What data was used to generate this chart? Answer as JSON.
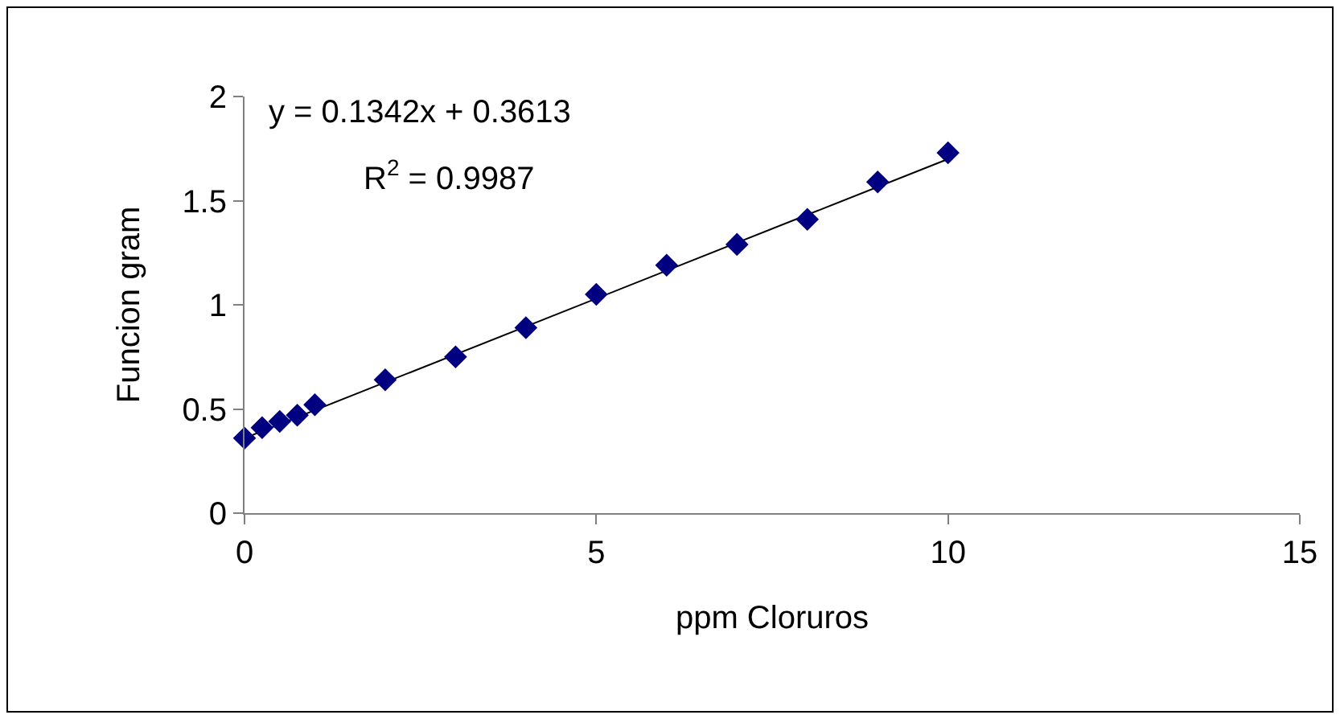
{
  "chart_data": {
    "type": "scatter",
    "xlabel": "ppm Cloruros",
    "ylabel": "Funcion gram",
    "marker": "diamond",
    "grid": false,
    "xlim": [
      0,
      15
    ],
    "xticks": [
      0,
      5,
      10,
      15
    ],
    "ylim": [
      0,
      2
    ],
    "yticks": [
      0,
      0.5,
      1,
      1.5,
      2
    ],
    "series": [
      {
        "color": "#000080",
        "x": [
          0,
          0.25,
          0.5,
          0.75,
          1,
          2,
          3,
          4,
          5,
          6,
          7,
          8,
          9,
          10
        ],
        "values": [
          0.36,
          0.41,
          0.44,
          0.47,
          0.52,
          0.64,
          0.75,
          0.89,
          1.05,
          1.19,
          1.29,
          1.41,
          1.59,
          1.73
        ]
      },
      {
        "type": "line",
        "color": "#000000",
        "line_style": "solid",
        "marker": "none",
        "x": [
          0,
          10
        ],
        "values": [
          0.36,
          1.7
        ]
      }
    ],
    "annotations": [
      "y = 0.1342x + 0.3613",
      "R$^{2}$ = 0.9987"
    ]
  }
}
